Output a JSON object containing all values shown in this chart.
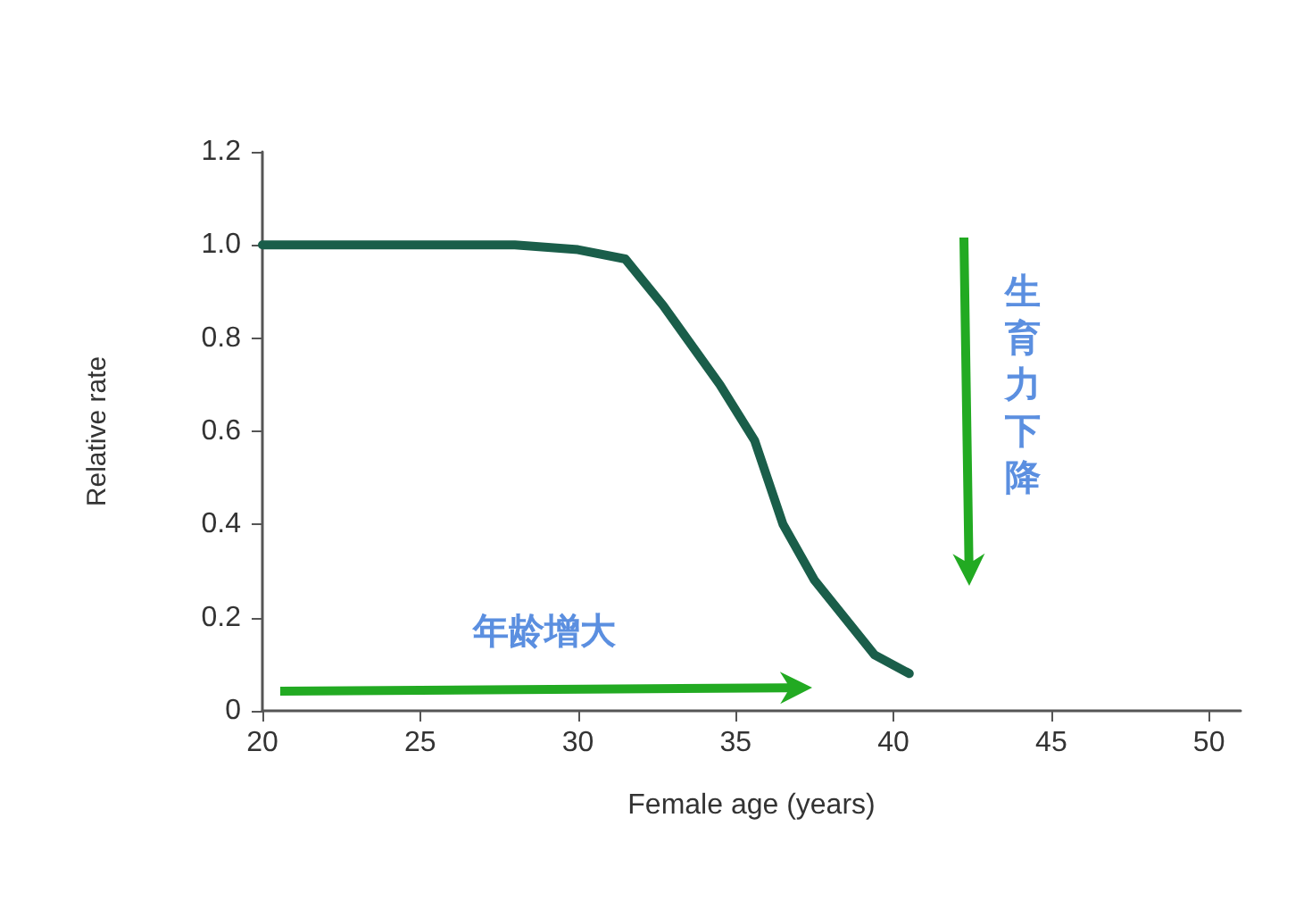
{
  "chart_data": {
    "type": "line",
    "xlabel": "Female age (years)",
    "ylabel": "Relative rate",
    "x": [
      20,
      28,
      30,
      31.5,
      32.7,
      34.5,
      35.6,
      36.5,
      37.5,
      39.4,
      40.5
    ],
    "series": [
      {
        "color": "#1a5e4a",
        "values": [
          1.0,
          1.0,
          0.99,
          0.97,
          0.87,
          0.7,
          0.58,
          0.4,
          0.28,
          0.12,
          0.08
        ]
      }
    ],
    "xlim": [
      20,
      51
    ],
    "xticks": [
      20,
      25,
      30,
      35,
      40,
      45,
      50
    ],
    "ylim": [
      0,
      1.2
    ],
    "yticks": [
      {
        "value": 0,
        "label": "0"
      },
      {
        "value": 0.2,
        "label": "0.2"
      },
      {
        "value": 0.4,
        "label": "0.4"
      },
      {
        "value": 0.6,
        "label": "0.6"
      },
      {
        "value": 0.8,
        "label": "0.8"
      },
      {
        "value": 1.0,
        "label": "1.0"
      },
      {
        "value": 1.2,
        "label": "1.2"
      }
    ],
    "annotations": [
      "年龄增大",
      "生育力下降"
    ],
    "grid": false,
    "marker": "none",
    "line_style": "solid"
  }
}
